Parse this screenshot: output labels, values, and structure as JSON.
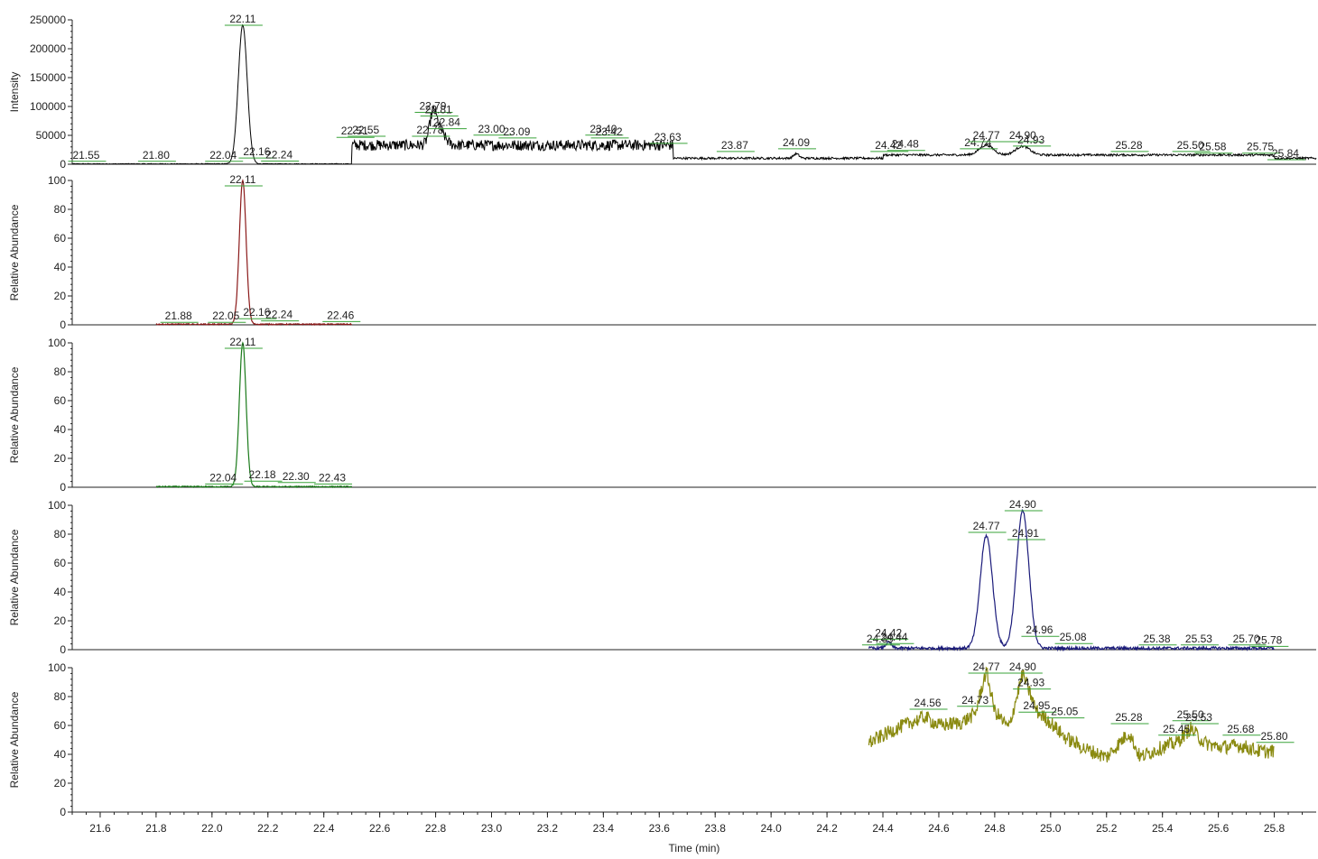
{
  "chart_data": {
    "type": "line",
    "xlabel": "Time (min)",
    "xlim": [
      21.5,
      25.95
    ],
    "xticks": [
      "21.6",
      "21.8",
      "22.0",
      "22.2",
      "22.4",
      "22.6",
      "22.8",
      "23.0",
      "23.2",
      "23.4",
      "23.6",
      "23.8",
      "24.0",
      "24.2",
      "24.4",
      "24.6",
      "24.8",
      "25.0",
      "25.2",
      "25.4",
      "25.6",
      "25.8"
    ],
    "panels": [
      {
        "ylabel": "Intensity",
        "color": "#000000",
        "ylim": [
          0,
          265000
        ],
        "yticks": [
          "0",
          "50000",
          "100000",
          "150000",
          "200000",
          "250000"
        ],
        "x_range": [
          21.5,
          25.95
        ],
        "peaks": [
          {
            "x": 22.11,
            "y": 255000,
            "w": 0.016
          },
          {
            "x": 22.79,
            "y": 45000,
            "w": 0.012
          },
          {
            "x": 22.81,
            "y": 30000,
            "w": 0.02
          },
          {
            "x": 24.77,
            "y": 18000,
            "w": 0.025
          },
          {
            "x": 24.9,
            "y": 16000,
            "w": 0.025
          },
          {
            "x": 24.09,
            "y": 8000,
            "w": 0.01
          }
        ],
        "labels": [
          {
            "x": 21.55,
            "y": 2000,
            "text": "21.55"
          },
          {
            "x": 21.8,
            "y": 2000,
            "text": "21.80"
          },
          {
            "x": 22.04,
            "y": 2000,
            "text": "22.04"
          },
          {
            "x": 22.11,
            "y": 255000,
            "text": "22.11"
          },
          {
            "x": 22.16,
            "y": 8000,
            "text": "22.16"
          },
          {
            "x": 22.24,
            "y": 2500,
            "text": "22.24"
          },
          {
            "x": 22.51,
            "y": 46000,
            "text": "22.51"
          },
          {
            "x": 22.55,
            "y": 48000,
            "text": "22.55"
          },
          {
            "x": 22.78,
            "y": 48000,
            "text": "22.78"
          },
          {
            "x": 22.79,
            "y": 92000,
            "text": "22.79"
          },
          {
            "x": 22.81,
            "y": 85000,
            "text": "22.81"
          },
          {
            "x": 22.84,
            "y": 62000,
            "text": "22.84"
          },
          {
            "x": 23.0,
            "y": 50000,
            "text": "23.00"
          },
          {
            "x": 23.09,
            "y": 45000,
            "text": "23.09"
          },
          {
            "x": 23.4,
            "y": 50000,
            "text": "23.40"
          },
          {
            "x": 23.42,
            "y": 45000,
            "text": "23.42"
          },
          {
            "x": 23.63,
            "y": 35000,
            "text": "23.63"
          },
          {
            "x": 23.87,
            "y": 20000,
            "text": "23.87"
          },
          {
            "x": 24.09,
            "y": 25000,
            "text": "24.09"
          },
          {
            "x": 24.42,
            "y": 20000,
            "text": "24.42"
          },
          {
            "x": 24.48,
            "y": 22000,
            "text": "24.48"
          },
          {
            "x": 24.74,
            "y": 25000,
            "text": "24.74"
          },
          {
            "x": 24.77,
            "y": 38000,
            "text": "24.77"
          },
          {
            "x": 24.9,
            "y": 38000,
            "text": "24.90"
          },
          {
            "x": 24.93,
            "y": 30000,
            "text": "24.93"
          },
          {
            "x": 25.28,
            "y": 20000,
            "text": "25.28"
          },
          {
            "x": 25.5,
            "y": 20000,
            "text": "25.50"
          },
          {
            "x": 25.58,
            "y": 17000,
            "text": "25.58"
          },
          {
            "x": 25.75,
            "y": 17000,
            "text": "25.75"
          },
          {
            "x": 25.84,
            "y": 5000,
            "text": "25.84"
          }
        ]
      },
      {
        "ylabel": "Relative Abundance",
        "color": "#8b1a1a",
        "ylim": [
          0,
          100
        ],
        "yticks": [
          "0",
          "20",
          "40",
          "60",
          "80",
          "100"
        ],
        "x_range": [
          21.8,
          22.5
        ],
        "peaks": [
          {
            "x": 22.11,
            "y": 100,
            "w": 0.012
          }
        ],
        "labels": [
          {
            "x": 21.88,
            "y": 0.5,
            "text": "21.88"
          },
          {
            "x": 22.05,
            "y": 0.5,
            "text": "22.05"
          },
          {
            "x": 22.11,
            "y": 100,
            "text": "22.11"
          },
          {
            "x": 22.16,
            "y": 3,
            "text": "22.16"
          },
          {
            "x": 22.24,
            "y": 1.5,
            "text": "22.24"
          },
          {
            "x": 22.46,
            "y": 1,
            "text": "22.46"
          }
        ]
      },
      {
        "ylabel": "Relative Abundance",
        "color": "#1a7a1a",
        "ylim": [
          0,
          100
        ],
        "yticks": [
          "0",
          "20",
          "40",
          "60",
          "80",
          "100"
        ],
        "x_range": [
          21.8,
          22.5
        ],
        "peaks": [
          {
            "x": 22.11,
            "y": 100,
            "w": 0.012
          }
        ],
        "labels": [
          {
            "x": 22.04,
            "y": 1,
            "text": "22.04"
          },
          {
            "x": 22.11,
            "y": 100,
            "text": "22.11"
          },
          {
            "x": 22.18,
            "y": 3,
            "text": "22.18"
          },
          {
            "x": 22.3,
            "y": 2,
            "text": "22.30"
          },
          {
            "x": 22.43,
            "y": 1,
            "text": "22.43"
          }
        ]
      },
      {
        "ylabel": "Relative Abundance",
        "color": "#1a1a7a",
        "ylim": [
          0,
          100
        ],
        "yticks": [
          "0",
          "20",
          "40",
          "60",
          "80",
          "100"
        ],
        "x_range": [
          24.35,
          25.8
        ],
        "peaks": [
          {
            "x": 24.77,
            "y": 78,
            "w": 0.022
          },
          {
            "x": 24.9,
            "y": 95,
            "w": 0.022
          },
          {
            "x": 24.42,
            "y": 4,
            "w": 0.01
          }
        ],
        "labels": [
          {
            "x": 24.39,
            "y": 2,
            "text": "24.39"
          },
          {
            "x": 24.42,
            "y": 6,
            "text": "24.42"
          },
          {
            "x": 24.44,
            "y": 3,
            "text": "24.44"
          },
          {
            "x": 24.77,
            "y": 80,
            "text": "24.77"
          },
          {
            "x": 24.9,
            "y": 100,
            "text": "24.90"
          },
          {
            "x": 24.91,
            "y": 75,
            "text": "24.91"
          },
          {
            "x": 24.96,
            "y": 8,
            "text": "24.96"
          },
          {
            "x": 25.08,
            "y": 3,
            "text": "25.08"
          },
          {
            "x": 25.38,
            "y": 2,
            "text": "25.38"
          },
          {
            "x": 25.53,
            "y": 2,
            "text": "25.53"
          },
          {
            "x": 25.7,
            "y": 2,
            "text": "25.70"
          },
          {
            "x": 25.78,
            "y": 1,
            "text": "25.78"
          }
        ]
      },
      {
        "ylabel": "Relative Abundance",
        "color": "#8a8a10",
        "ylim": [
          0,
          100
        ],
        "yticks": [
          "0",
          "20",
          "40",
          "60",
          "80",
          "100"
        ],
        "x_range": [
          24.35,
          25.8
        ],
        "baseline": [
          {
            "x": 24.35,
            "y": 48
          },
          {
            "x": 24.45,
            "y": 58
          },
          {
            "x": 24.55,
            "y": 66
          },
          {
            "x": 24.6,
            "y": 60
          },
          {
            "x": 24.68,
            "y": 62
          },
          {
            "x": 24.73,
            "y": 68
          },
          {
            "x": 24.77,
            "y": 98
          },
          {
            "x": 24.8,
            "y": 70
          },
          {
            "x": 24.85,
            "y": 58
          },
          {
            "x": 24.9,
            "y": 96
          },
          {
            "x": 24.95,
            "y": 70
          },
          {
            "x": 25.0,
            "y": 62
          },
          {
            "x": 25.05,
            "y": 52
          },
          {
            "x": 25.12,
            "y": 44
          },
          {
            "x": 25.2,
            "y": 38
          },
          {
            "x": 25.28,
            "y": 55
          },
          {
            "x": 25.32,
            "y": 38
          },
          {
            "x": 25.4,
            "y": 45
          },
          {
            "x": 25.45,
            "y": 48
          },
          {
            "x": 25.5,
            "y": 58
          },
          {
            "x": 25.55,
            "y": 48
          },
          {
            "x": 25.6,
            "y": 45
          },
          {
            "x": 25.68,
            "y": 46
          },
          {
            "x": 25.75,
            "y": 42
          },
          {
            "x": 25.8,
            "y": 42
          }
        ],
        "labels": [
          {
            "x": 24.56,
            "y": 70,
            "text": "24.56"
          },
          {
            "x": 24.73,
            "y": 72,
            "text": "24.73"
          },
          {
            "x": 24.77,
            "y": 100,
            "text": "24.77"
          },
          {
            "x": 24.9,
            "y": 98,
            "text": "24.90"
          },
          {
            "x": 24.93,
            "y": 84,
            "text": "24.93"
          },
          {
            "x": 24.95,
            "y": 68,
            "text": "24.95"
          },
          {
            "x": 25.05,
            "y": 64,
            "text": "25.05"
          },
          {
            "x": 25.28,
            "y": 60,
            "text": "25.28"
          },
          {
            "x": 25.45,
            "y": 52,
            "text": "25.45"
          },
          {
            "x": 25.5,
            "y": 62,
            "text": "25.50"
          },
          {
            "x": 25.53,
            "y": 60,
            "text": "25.53"
          },
          {
            "x": 25.68,
            "y": 52,
            "text": "25.68"
          },
          {
            "x": 25.8,
            "y": 47,
            "text": "25.80"
          }
        ]
      }
    ]
  }
}
